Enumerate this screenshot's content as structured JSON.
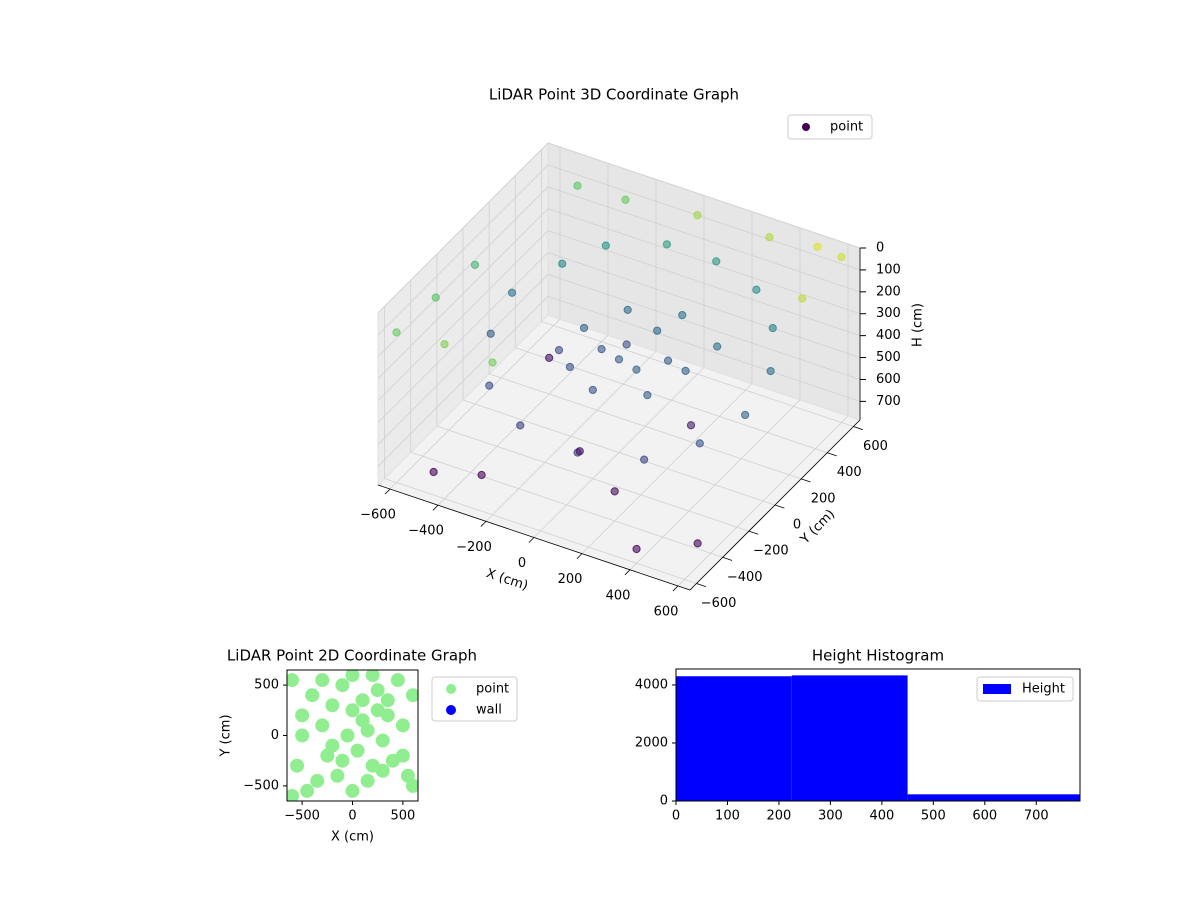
{
  "chart_data": [
    {
      "type": "scatter3d",
      "title": "LiDAR Point 3D Coordinate Graph",
      "xlabel": "X (cm)",
      "ylabel": "Y (cm)",
      "zlabel": "H (cm)",
      "xlim": [
        -650,
        650
      ],
      "ylim": [
        -650,
        650
      ],
      "zlim": [
        0,
        785
      ],
      "z_inverted": true,
      "xticks": [
        {
          "value": -600,
          "label": "−600"
        },
        {
          "value": -400,
          "label": "−400"
        },
        {
          "value": -200,
          "label": "−200"
        },
        0,
        200,
        400,
        600
      ],
      "yticks": [
        {
          "value": -600,
          "label": "−600"
        },
        {
          "value": -400,
          "label": "−400"
        },
        {
          "value": -200,
          "label": "−200"
        },
        0,
        200,
        400,
        600
      ],
      "zticks": [
        0,
        100,
        200,
        300,
        400,
        500,
        600,
        700
      ],
      "colormap": "viridis",
      "grid": true,
      "legend": "upper right",
      "series": [
        {
          "name": "point",
          "x": [
            -200,
            -100,
            0,
            100,
            -50,
            150,
            -150,
            50,
            200,
            -250,
            0,
            250,
            -100,
            100,
            300,
            -400,
            -300,
            -100,
            100,
            300,
            450,
            550,
            580,
            500,
            350,
            100,
            -150,
            -350,
            -480,
            -500,
            -600,
            -600,
            -600,
            -400,
            -200,
            0,
            -300,
            300,
            600,
            600,
            500,
            -500,
            -300,
            200,
            400,
            -500,
            600,
            0,
            300,
            -400
          ],
          "y": [
            100,
            50,
            0,
            -50,
            150,
            100,
            -100,
            200,
            -150,
            0,
            -200,
            50,
            250,
            300,
            200,
            300,
            450,
            550,
            560,
            500,
            350,
            150,
            -100,
            -300,
            -450,
            -500,
            -480,
            -350,
            -100,
            100,
            -600,
            -300,
            0,
            -600,
            -600,
            600,
            600,
            600,
            600,
            300,
            600,
            600,
            -500,
            -400,
            -600,
            -500,
            -500,
            -300,
            0,
            200
          ],
          "z": [
            350,
            380,
            360,
            340,
            400,
            370,
            390,
            330,
            360,
            410,
            380,
            350,
            320,
            300,
            310,
            250,
            220,
            200,
            210,
            230,
            260,
            300,
            340,
            380,
            420,
            450,
            430,
            400,
            360,
            300,
            100,
            120,
            150,
            80,
            90,
            60,
            100,
            50,
            30,
            40,
            20,
            110,
            700,
            650,
            720,
            760,
            680,
            600,
            550,
            620
          ]
        }
      ]
    },
    {
      "type": "scatter",
      "title": "LiDAR Point 2D Coordinate Graph",
      "xlabel": "X (cm)",
      "ylabel": "Y (cm)",
      "xlim": [
        -650,
        650
      ],
      "ylim": [
        -650,
        650
      ],
      "xticks": [
        {
          "value": -500,
          "label": "−500"
        },
        0,
        500
      ],
      "yticks": [
        {
          "value": -500,
          "label": "−500"
        },
        0,
        500
      ],
      "legend": "outside upper right",
      "series": [
        {
          "name": "point",
          "color": "#90ee90",
          "x": [
            -600,
            -550,
            -500,
            -400,
            -300,
            -250,
            -200,
            -150,
            -100,
            -50,
            0,
            50,
            100,
            150,
            200,
            250,
            300,
            350,
            400,
            450,
            500,
            550,
            600,
            -350,
            -200,
            0,
            200,
            350,
            -450,
            100,
            -100,
            300,
            -300,
            0,
            150,
            -600,
            600,
            500,
            -500,
            250
          ],
          "y": [
            550,
            -300,
            200,
            400,
            100,
            -200,
            300,
            -400,
            500,
            0,
            250,
            -150,
            350,
            50,
            -300,
            450,
            -50,
            200,
            -250,
            550,
            100,
            -400,
            -500,
            -450,
            -100,
            -550,
            600,
            350,
            -550,
            150,
            -250,
            -350,
            550,
            600,
            -450,
            -600,
            400,
            -200,
            0,
            250
          ]
        },
        {
          "name": "wall",
          "color": "#0000ff",
          "x": [],
          "y": []
        }
      ]
    },
    {
      "type": "histogram",
      "title": "Height Histogram",
      "bins": [
        0,
        225,
        450,
        785
      ],
      "xlim": [
        0,
        785
      ],
      "ylim": [
        0,
        4550
      ],
      "xticks": [
        0,
        100,
        200,
        300,
        400,
        500,
        600,
        700
      ],
      "yticks": [
        0,
        2000,
        4000
      ],
      "legend": "upper right",
      "series": [
        {
          "name": "Height",
          "color": "#0000ff",
          "values": [
            4300,
            4330,
            230
          ]
        }
      ]
    }
  ]
}
